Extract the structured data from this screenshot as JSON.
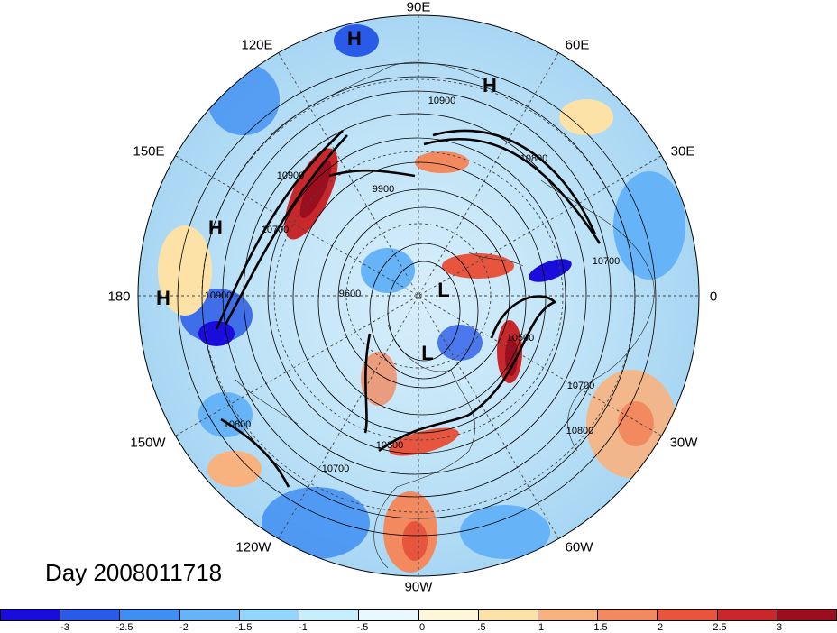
{
  "title": "Day 2008011718",
  "map": {
    "projection": "north-polar-stereographic",
    "longitude_labels": [
      "90E",
      "60E",
      "30E",
      "0",
      "30W",
      "60W",
      "90W",
      "120W",
      "150W",
      "180",
      "150E",
      "120E"
    ],
    "pressure_centers": [
      {
        "label": "H",
        "region": "central Asia"
      },
      {
        "label": "H",
        "region": "Siberia"
      },
      {
        "label": "H",
        "region": "North Pacific"
      },
      {
        "label": "H",
        "region": "North Pacific near dateline"
      },
      {
        "label": "L",
        "region": "Arctic"
      },
      {
        "label": "L",
        "region": "Hudson Bay"
      }
    ],
    "contour_labels": [
      "10900",
      "10800",
      "10900",
      "9900",
      "10700",
      "10700",
      "10900",
      "9600",
      "10500",
      "10700",
      "10800",
      "10800",
      "10300",
      "10700"
    ]
  },
  "colorbar": {
    "colors": [
      "#1a0ddc",
      "#2a5be8",
      "#3f8ef2",
      "#66b4f7",
      "#93d6fb",
      "#c6eefc",
      "#e9f8fc",
      "#fdf6d8",
      "#fde2a8",
      "#f8b27f",
      "#f2895f",
      "#e8553e",
      "#c8282b",
      "#9b0e1f"
    ],
    "labels": [
      "-3",
      "-2.5",
      "-2",
      "-1.5",
      "-1",
      "-.5",
      "0",
      ".5",
      "1",
      "1.5",
      "2",
      "2.5",
      "3"
    ]
  }
}
